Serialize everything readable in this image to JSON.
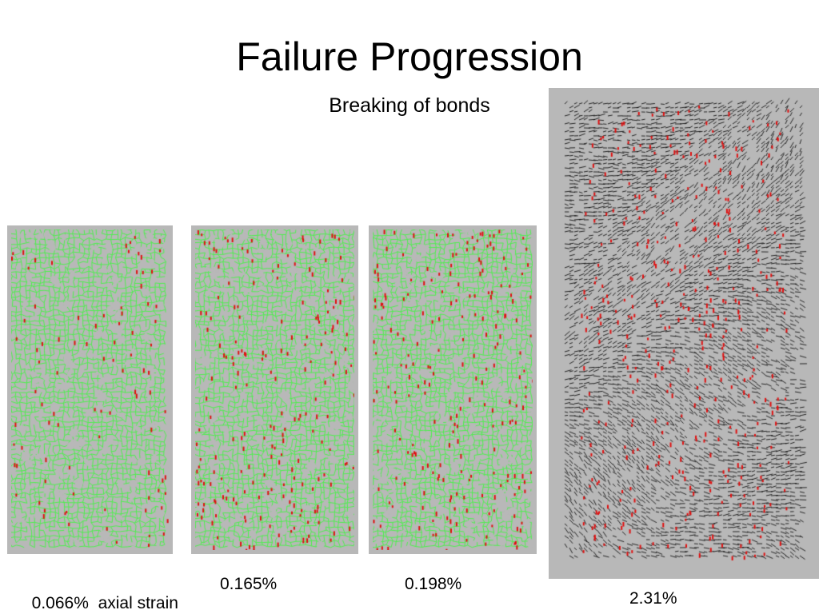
{
  "title": "Failure Progression",
  "subtitle": "Breaking of bonds",
  "colors": {
    "panel_bg": "#b8b8b8",
    "grain_green": "#4ef04e",
    "broken_bond": "#e01010",
    "arrow": "#000000"
  },
  "panels": [
    {
      "strain_label": "0.066%",
      "extra_label": "axial strain",
      "broken_level": 0.12
    },
    {
      "strain_label": "0.165%",
      "broken_level": 0.55
    },
    {
      "strain_label": "0.198%",
      "broken_level": 0.6
    },
    {
      "strain_label": "2.31%",
      "broken_level": 1.0,
      "view": "displacement-vectors"
    }
  ]
}
